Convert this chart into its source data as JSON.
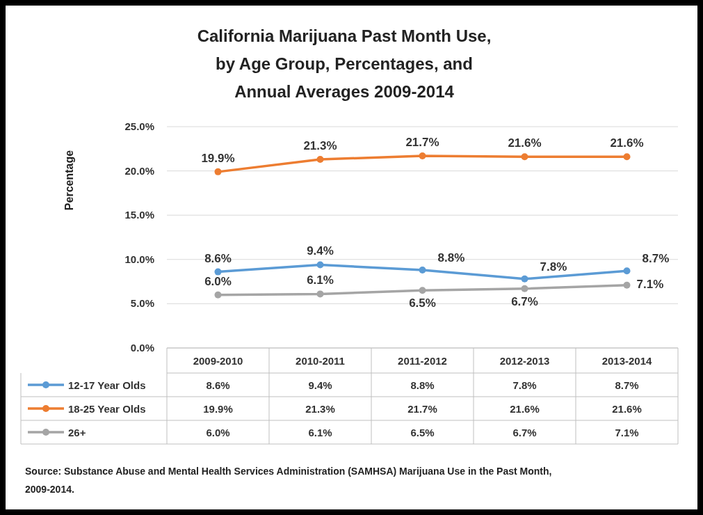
{
  "chart_data": {
    "type": "line",
    "title": "California Marijuana Past Month Use, by Age Group, Percentages, and Annual Averages 2009-2014",
    "ylabel": "Percentage",
    "categories": [
      "2009-2010",
      "2010-2011",
      "2011-2012",
      "2012-2013",
      "2013-2014"
    ],
    "series": [
      {
        "name": "12-17 Year Olds",
        "color": "#5b9bd5",
        "values": [
          8.6,
          9.4,
          8.8,
          7.8,
          8.7
        ],
        "value_labels": [
          "8.6%",
          "9.4%",
          "8.8%",
          "7.8%",
          "8.7%"
        ]
      },
      {
        "name": "18-25 Year Olds",
        "color": "#ed7d31",
        "values": [
          19.9,
          21.3,
          21.7,
          21.6,
          21.6
        ],
        "value_labels": [
          "19.9%",
          "21.3%",
          "21.7%",
          "21.6%",
          "21.6%"
        ]
      },
      {
        "name": "26+",
        "color": "#a5a5a5",
        "values": [
          6.0,
          6.1,
          6.5,
          6.7,
          7.1
        ],
        "value_labels": [
          "6.0%",
          "6.1%",
          "6.5%",
          "6.7%",
          "7.1%"
        ]
      }
    ],
    "ylim": [
      0,
      25
    ],
    "yticks": [
      {
        "value": 0,
        "label": "0.0%"
      },
      {
        "value": 5,
        "label": "5.0%"
      },
      {
        "value": 10,
        "label": "10.0%"
      },
      {
        "value": 15,
        "label": "15.0%"
      },
      {
        "value": 20,
        "label": "20.0%"
      },
      {
        "value": 25,
        "label": "25.0%"
      }
    ],
    "grid": "y",
    "legend": "bottom",
    "marker": "circle",
    "line_style": "solid",
    "annotations": [
      "Source:  Substance Abuse and Mental Health Services  Administration (SAMHSA) Marijuana Use in the Past Month, 2009-2014."
    ]
  }
}
